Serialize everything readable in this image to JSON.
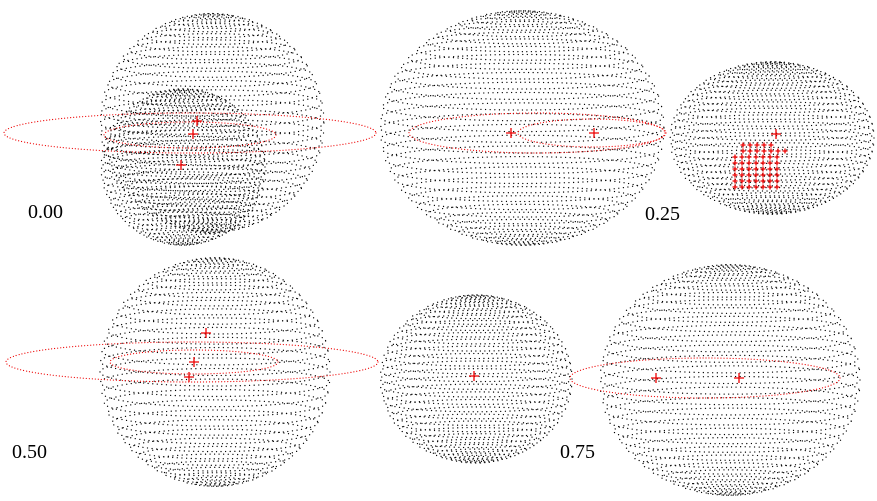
{
  "panels": [
    {
      "phase": "0.00"
    },
    {
      "phase": "0.25"
    },
    {
      "phase": "0.50"
    },
    {
      "phase": "0.75"
    }
  ]
}
